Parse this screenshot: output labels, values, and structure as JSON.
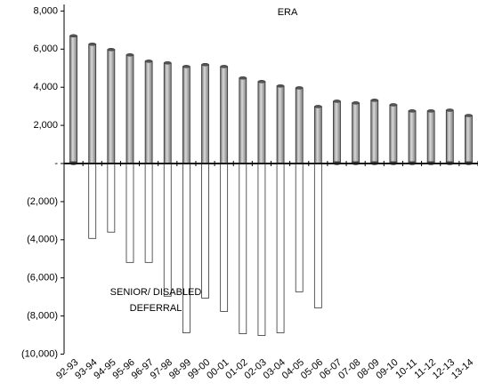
{
  "chart_data": {
    "type": "bar",
    "annotations": [
      "ERA",
      "SENIOR/ DISABLED",
      "DEFERRAL"
    ],
    "categories": [
      "92-93",
      "93-94",
      "94-95",
      "95-96",
      "96-97",
      "97-98",
      "98-99",
      "99-00",
      "00-01",
      "01-02",
      "02-03",
      "03-04",
      "04-05",
      "05-06",
      "06-07",
      "07-08",
      "08-09",
      "09-10",
      "10-11",
      "11-12",
      "12-13",
      "13-14"
    ],
    "series": [
      {
        "color": "#a6a6a6",
        "values": [
          6700,
          6260,
          5980,
          5700,
          5370,
          5280,
          5090,
          5190,
          5090,
          4490,
          4300,
          4070,
          3970,
          2990,
          3270,
          3180,
          3320,
          3080,
          2760,
          2760,
          2800,
          2520
        ]
      },
      {
        "color": "#ffffff",
        "values": [
          0,
          -3930,
          -3600,
          -5190,
          -5190,
          -6960,
          -8880,
          -7060,
          -7760,
          -8930,
          -9020,
          -8880,
          -6730,
          -7570,
          0,
          0,
          0,
          0,
          0,
          0,
          0,
          0
        ]
      }
    ],
    "ylim": [
      -10000,
      8000
    ],
    "yticks": [
      {
        "value": 8000,
        "label": "8,000"
      },
      {
        "value": 6000,
        "label": "6,000"
      },
      {
        "value": 4000,
        "label": "4,000"
      },
      {
        "value": 2000,
        "label": "2,000"
      },
      {
        "value": 0,
        "label": "-"
      },
      {
        "value": -2000,
        "label": "(2,000)"
      },
      {
        "value": -4000,
        "label": "(4,000)"
      },
      {
        "value": -6000,
        "label": "(6,000)"
      },
      {
        "value": -8000,
        "label": "(8,000)"
      },
      {
        "value": -10000,
        "label": "(10,000)"
      }
    ]
  }
}
